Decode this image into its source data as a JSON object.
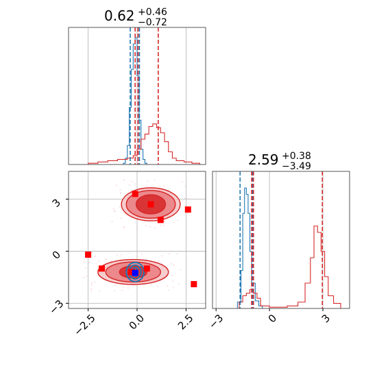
{
  "chart_data": [
    {
      "type": "histogram",
      "panel": "marginal-x",
      "title": {
        "value": "0.62",
        "upper": "+0.46",
        "lower": "−0.72"
      },
      "xlim": [
        -3.5,
        3.5
      ],
      "grid": true,
      "series": [
        {
          "color": "#1f77b4",
          "x": [
            -0.8,
            -0.7,
            -0.6,
            -0.5,
            -0.4,
            -0.3,
            -0.2,
            -0.1,
            0.0,
            0.1,
            0.2,
            0.3,
            0.4,
            0.5
          ],
          "y": [
            0.0,
            0.01,
            0.05,
            0.15,
            0.45,
            0.75,
            0.95,
            1.0,
            0.7,
            0.35,
            0.12,
            0.04,
            0.01,
            0.0
          ]
        },
        {
          "color": "#d62728",
          "x": [
            -3.2,
            -2.5,
            -2.0,
            -1.5,
            -1.0,
            -0.5,
            -0.2,
            0.0,
            0.2,
            0.4,
            0.6,
            0.8,
            1.0,
            1.2,
            1.4,
            1.6,
            1.8,
            2.0,
            2.4,
            2.8,
            3.2
          ],
          "y": [
            0.0,
            0.01,
            0.02,
            0.03,
            0.04,
            0.05,
            0.07,
            0.12,
            0.2,
            0.24,
            0.3,
            0.32,
            0.29,
            0.25,
            0.18,
            0.1,
            0.05,
            0.03,
            0.02,
            0.01,
            0.0
          ]
        }
      ],
      "vlines": [
        {
          "x": -0.35,
          "color": "#1f77b4"
        },
        {
          "x": 0.12,
          "color": "#1f77b4"
        },
        {
          "x": -0.1,
          "color": "#d62728"
        },
        {
          "x": 0.05,
          "color": "#d62728"
        },
        {
          "x": 1.08,
          "color": "#d62728"
        }
      ]
    },
    {
      "type": "histogram",
      "panel": "marginal-y",
      "title": {
        "value": "2.59",
        "upper": "+0.38",
        "lower": "−3.49"
      },
      "xlim": [
        -3.2,
        4.5
      ],
      "xticks": [
        "−3",
        "0",
        "3"
      ],
      "xtick_values": [
        -3,
        0,
        3
      ],
      "grid": true,
      "series": [
        {
          "color": "#1f77b4",
          "x": [
            -2.0,
            -1.8,
            -1.6,
            -1.5,
            -1.4,
            -1.3,
            -1.2,
            -1.1,
            -1.0,
            -0.8,
            -0.6,
            -0.4
          ],
          "y": [
            0.0,
            0.05,
            0.3,
            0.75,
            0.95,
            0.9,
            0.75,
            0.45,
            0.2,
            0.06,
            0.02,
            0.0
          ]
        },
        {
          "color": "#d62728",
          "x": [
            -2.0,
            -1.7,
            -1.5,
            -1.3,
            -1.1,
            -0.9,
            -0.7,
            -0.5,
            0.0,
            1.0,
            1.6,
            2.0,
            2.3,
            2.5,
            2.7,
            2.9,
            3.1,
            3.3,
            3.6,
            4.0
          ],
          "y": [
            0.0,
            0.05,
            0.1,
            0.12,
            0.15,
            0.12,
            0.08,
            0.02,
            0.01,
            0.02,
            0.05,
            0.2,
            0.4,
            0.65,
            0.6,
            0.45,
            0.25,
            0.1,
            0.04,
            0.0
          ]
        }
      ],
      "vlines": [
        {
          "x": -1.65,
          "color": "#1f77b4"
        },
        {
          "x": -0.95,
          "color": "#1f77b4"
        },
        {
          "x": -1.0,
          "color": "#d62728"
        },
        {
          "x": -0.9,
          "color": "#d62728"
        },
        {
          "x": 2.97,
          "color": "#d62728"
        }
      ]
    },
    {
      "type": "scatter",
      "panel": "joint",
      "xlim": [
        -3.5,
        3.5
      ],
      "ylim": [
        -3.3,
        4.6
      ],
      "xticks": [
        "−2.5",
        "0.0",
        "2.5"
      ],
      "xtick_values": [
        -2.5,
        0.0,
        2.5
      ],
      "yticks": [
        "−3",
        "0",
        "3"
      ],
      "ytick_values": [
        -3,
        0,
        3
      ],
      "grid": true,
      "contours": [
        {
          "color": "#d62728",
          "cx": 0.7,
          "cy": 2.7,
          "levels": [
            [
              1.5,
              0.95
            ],
            [
              1.25,
              0.8
            ],
            [
              0.75,
              0.55
            ]
          ]
        },
        {
          "color": "#d62728",
          "cx": -0.2,
          "cy": -1.2,
          "levels": [
            [
              1.8,
              0.72
            ],
            [
              1.4,
              0.58
            ],
            [
              0.7,
              0.35
            ]
          ]
        },
        {
          "color": "#1f77b4",
          "cx": -0.1,
          "cy": -1.2,
          "levels": [
            [
              0.45,
              0.55
            ],
            [
              0.3,
              0.4
            ],
            [
              0.15,
              0.25
            ]
          ]
        }
      ],
      "markers": [
        {
          "x": -0.1,
          "y": 3.3,
          "color": "#ff0000"
        },
        {
          "x": 0.7,
          "y": 2.7,
          "color": "#ff0000"
        },
        {
          "x": 1.2,
          "y": 1.8,
          "color": "#ff0000"
        },
        {
          "x": 2.6,
          "y": 2.4,
          "color": "#ff0000"
        },
        {
          "x": -2.5,
          "y": -0.2,
          "color": "#ff0000"
        },
        {
          "x": -1.8,
          "y": -1.0,
          "color": "#ff0000"
        },
        {
          "x": 0.5,
          "y": -1.0,
          "color": "#ff0000"
        },
        {
          "x": -0.3,
          "y": -1.2,
          "color": "#ff0000"
        },
        {
          "x": 2.9,
          "y": -1.9,
          "color": "#ff0000"
        },
        {
          "x": -0.1,
          "y": -1.25,
          "color": "#0000ff"
        }
      ]
    }
  ]
}
